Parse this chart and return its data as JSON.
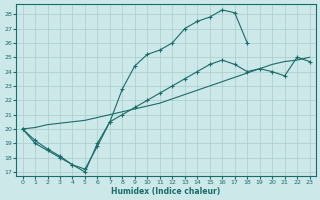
{
  "xlabel": "Humidex (Indice chaleur)",
  "bg_color": "#cce8e8",
  "grid_color": "#aacccc",
  "line_color": "#1a6b6b",
  "xlim": [
    -0.5,
    23.5
  ],
  "ylim": [
    16.7,
    28.7
  ],
  "yticks": [
    17,
    18,
    19,
    20,
    21,
    22,
    23,
    24,
    25,
    26,
    27,
    28
  ],
  "xticks": [
    0,
    1,
    2,
    3,
    4,
    5,
    6,
    7,
    8,
    9,
    10,
    11,
    12,
    13,
    14,
    15,
    16,
    17,
    18,
    19,
    20,
    21,
    22,
    23
  ],
  "line1_x": [
    0,
    1,
    2,
    3,
    4,
    5,
    6,
    7,
    8,
    9,
    10,
    11,
    12,
    13,
    14,
    15,
    16,
    17,
    18
  ],
  "line1_y": [
    20.0,
    19.2,
    18.6,
    18.1,
    17.5,
    17.0,
    19.0,
    20.5,
    22.8,
    24.4,
    25.2,
    25.5,
    26.0,
    27.0,
    27.5,
    27.8,
    28.3,
    28.1,
    26.0
  ],
  "line2_x": [
    0,
    1,
    2,
    3,
    4,
    5,
    6,
    7,
    8,
    9,
    10,
    11,
    12,
    13,
    14,
    15,
    16,
    17,
    18,
    19,
    20,
    21,
    22,
    23
  ],
  "line2_y": [
    20.0,
    20.1,
    20.3,
    20.4,
    20.5,
    20.6,
    20.8,
    21.0,
    21.2,
    21.4,
    21.6,
    21.8,
    22.1,
    22.4,
    22.7,
    23.0,
    23.3,
    23.6,
    23.9,
    24.2,
    24.5,
    24.7,
    24.8,
    25.0
  ],
  "line3_x": [
    0,
    1,
    2,
    3,
    4,
    5,
    6,
    7,
    8,
    9,
    10,
    11,
    12,
    13,
    14,
    15,
    16,
    17,
    18,
    19,
    20,
    21,
    22,
    23
  ],
  "line3_y": [
    20.0,
    19.0,
    18.5,
    18.0,
    17.5,
    17.2,
    18.8,
    20.5,
    21.0,
    21.5,
    22.0,
    22.5,
    23.0,
    23.5,
    24.0,
    24.5,
    24.8,
    24.5,
    24.0,
    24.2,
    24.0,
    23.7,
    25.0,
    24.7
  ]
}
